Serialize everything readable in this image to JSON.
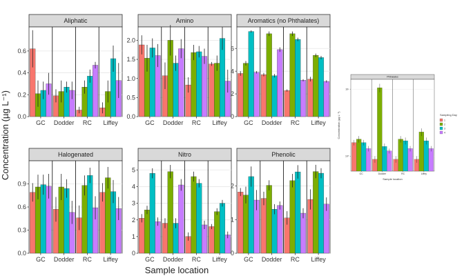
{
  "figure": {
    "ylabel": "Concentration (µg L⁻¹)",
    "xlabel": "Sample location"
  },
  "chart_data": [
    {
      "type": "bar",
      "title": "Aliphatic",
      "categories": [
        "GC",
        "Dodder",
        "RC",
        "Liffey"
      ],
      "ylim": [
        0,
        0.82
      ],
      "yticks": [
        0.0,
        0.2,
        0.4,
        0.6
      ],
      "ytick_labels": [
        "0.0",
        "0.2",
        "0.4",
        "0.6"
      ],
      "series": [
        {
          "values": [
            0.62,
            0.19,
            0.06,
            0.08
          ],
          "errors": [
            0.17,
            0.06,
            0.03,
            0.05
          ]
        },
        {
          "values": [
            0.21,
            0.23,
            0.27,
            0.23
          ],
          "errors": [
            0.12,
            0.1,
            0.06,
            0.1
          ]
        },
        {
          "values": [
            0.24,
            0.27,
            0.37,
            0.53
          ],
          "errors": [
            0.08,
            0.05,
            0.06,
            0.12
          ]
        },
        {
          "values": [
            0.3,
            0.24,
            0.47,
            0.33
          ],
          "errors": [
            0.1,
            0.08,
            0.03,
            0.16
          ]
        }
      ]
    },
    {
      "type": "bar",
      "title": "Amino",
      "categories": [
        "GC",
        "Dodder",
        "RC",
        "Liffey"
      ],
      "ylim": [
        0,
        2.35
      ],
      "yticks": [
        0.0,
        0.5,
        1.0,
        1.5,
        2.0
      ],
      "ytick_labels": [
        "0.0",
        "0.5",
        "1.0",
        "1.5",
        "2.0"
      ],
      "series": [
        {
          "values": [
            1.88,
            1.07,
            0.83,
            1.38
          ],
          "errors": [
            0.25,
            0.35,
            0.2,
            0.05
          ]
        },
        {
          "values": [
            1.53,
            2.0,
            1.68,
            1.4
          ],
          "errors": [
            0.35,
            0.4,
            0.2,
            0.2
          ]
        },
        {
          "values": [
            1.8,
            1.4,
            1.7,
            2.05
          ],
          "errors": [
            0.25,
            0.2,
            0.15,
            0.3
          ]
        },
        {
          "values": [
            1.6,
            1.78,
            1.58,
            0.93
          ],
          "errors": [
            0.3,
            0.25,
            0.2,
            0.3
          ]
        }
      ]
    },
    {
      "type": "bar",
      "title": "Aromatics (no Phthalates)",
      "categories": [
        "GC",
        "Dodder",
        "RC",
        "Liffey"
      ],
      "ylim": [
        0,
        7.9
      ],
      "yticks": [
        0,
        2,
        4,
        6
      ],
      "ytick_labels": [
        "0",
        "2",
        "4",
        "6"
      ],
      "series": [
        {
          "values": [
            3.8,
            3.7,
            2.3,
            3.3
          ],
          "errors": [
            0.2,
            0.15,
            0.1,
            0.2
          ]
        },
        {
          "values": [
            4.7,
            7.3,
            7.3,
            5.4
          ],
          "errors": [
            0.2,
            0.2,
            0.2,
            0.15
          ]
        },
        {
          "values": [
            7.5,
            3.6,
            6.8,
            5.2
          ],
          "errors": [
            0.1,
            0.15,
            0.15,
            0.15
          ]
        },
        {
          "values": [
            3.9,
            5.9,
            3.2,
            3.1
          ],
          "errors": [
            0.1,
            0.2,
            0.1,
            0.1
          ]
        }
      ]
    },
    {
      "type": "bar",
      "title": "Halogenated",
      "categories": [
        "GC",
        "Dodder",
        "RC",
        "Liffey"
      ],
      "ylim": [
        0,
        1.2
      ],
      "yticks": [
        0.0,
        0.3,
        0.6,
        0.9
      ],
      "ytick_labels": [
        "0.0",
        "0.3",
        "0.6",
        "0.9"
      ],
      "series": [
        {
          "values": [
            0.79,
            0.57,
            0.46,
            0.79
          ],
          "errors": [
            0.12,
            0.16,
            0.16,
            0.12
          ]
        },
        {
          "values": [
            0.86,
            0.86,
            0.88,
            0.98
          ],
          "errors": [
            0.16,
            0.17,
            0.13,
            0.14
          ]
        },
        {
          "values": [
            0.89,
            0.84,
            1.01,
            0.8
          ],
          "errors": [
            0.13,
            0.12,
            0.1,
            0.15
          ]
        },
        {
          "values": [
            0.87,
            0.53,
            0.59,
            0.58
          ],
          "errors": [
            0.16,
            0.15,
            0.15,
            0.15
          ]
        }
      ]
    },
    {
      "type": "bar",
      "title": "Nitro",
      "categories": [
        "GC",
        "Dodder",
        "RC",
        "Liffey"
      ],
      "ylim": [
        0,
        5.55
      ],
      "yticks": [
        0,
        1,
        2,
        3,
        4,
        5
      ],
      "ytick_labels": [
        "0",
        "1",
        "2",
        "3",
        "4",
        "5"
      ],
      "series": [
        {
          "values": [
            2.1,
            1.8,
            1.0,
            1.6
          ],
          "errors": [
            0.25,
            0.3,
            0.25,
            0.15
          ]
        },
        {
          "values": [
            2.6,
            4.9,
            4.6,
            2.5
          ],
          "errors": [
            0.25,
            0.4,
            0.3,
            0.2
          ]
        },
        {
          "values": [
            4.8,
            1.8,
            4.2,
            3.0
          ],
          "errors": [
            0.3,
            0.3,
            0.25,
            0.2
          ]
        },
        {
          "values": [
            1.9,
            4.1,
            1.7,
            1.1
          ],
          "errors": [
            0.25,
            0.35,
            0.25,
            0.2
          ]
        }
      ]
    },
    {
      "type": "bar",
      "title": "Phenolic",
      "categories": [
        "GC",
        "Dodder",
        "RC",
        "Liffey"
      ],
      "ylim": [
        0,
        2.75
      ],
      "yticks": [
        0,
        1,
        2
      ],
      "ytick_labels": [
        "0",
        "1",
        "2"
      ],
      "series": [
        {
          "values": [
            1.82,
            1.63,
            1.05,
            1.6
          ],
          "errors": [
            0.12,
            0.2,
            0.2,
            0.3
          ]
        },
        {
          "values": [
            1.73,
            2.02,
            2.16,
            2.43
          ],
          "errors": [
            0.25,
            0.15,
            0.2,
            0.2
          ]
        },
        {
          "values": [
            2.28,
            1.31,
            2.42,
            2.38
          ],
          "errors": [
            0.3,
            0.15,
            0.2,
            0.15
          ]
        },
        {
          "values": [
            1.58,
            1.42,
            1.19,
            1.46
          ],
          "errors": [
            0.3,
            0.12,
            0.15,
            0.2
          ]
        }
      ]
    },
    {
      "type": "bar",
      "title": "Phthalates",
      "categories": [
        "GC",
        "Dodder",
        "RC",
        "Liffey"
      ],
      "ylim": [
        0.6,
        14
      ],
      "log_scale": true,
      "yticks": [
        1,
        10
      ],
      "ytick_labels": [
        "10⁰",
        "10¹"
      ],
      "series": [
        {
          "values": [
            1.6,
            0.9,
            0.9,
            0.9
          ],
          "errors": [
            0.15,
            0.1,
            0.1,
            0.1
          ]
        },
        {
          "values": [
            1.8,
            10.5,
            1.8,
            2.3
          ],
          "errors": [
            0.2,
            1.5,
            0.2,
            0.3
          ]
        },
        {
          "values": [
            1.6,
            1.4,
            1.7,
            1.7
          ],
          "errors": [
            0.15,
            0.15,
            0.2,
            0.2
          ]
        },
        {
          "values": [
            1.3,
            1.2,
            1.3,
            1.3
          ],
          "errors": [
            0.12,
            0.1,
            0.12,
            0.12
          ]
        }
      ],
      "ylabel": "Concentration (µg L⁻¹)",
      "xlabel": "Sample location",
      "legend": {
        "title": "Sampling Day",
        "entries": [
          "1",
          "2",
          "3",
          "4"
        ],
        "position": "right"
      }
    }
  ],
  "series_colors": [
    "#f8766d",
    "#7cae00",
    "#00bfc4",
    "#c77cff"
  ]
}
